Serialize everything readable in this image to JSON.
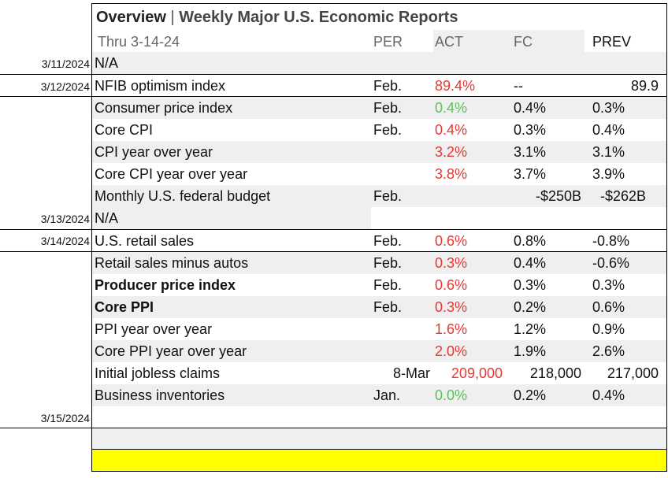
{
  "title": {
    "bold": "Overview",
    "sep": " | ",
    "rest": "Weekly Major U.S. Economic Reports"
  },
  "subtitle": "Thru 3-14-24",
  "columns": {
    "per": "PER",
    "act": "ACT",
    "fc": "FC",
    "prev": "PREV"
  },
  "dates": [
    "3/11/2024",
    "3/12/2024",
    "3/13/2024",
    "3/14/2024",
    "3/15/2024"
  ],
  "rows": [
    {
      "name": "N/A",
      "per": "",
      "act": "",
      "fc": "",
      "prev": ""
    },
    {
      "name": "NFIB optimism index",
      "per": "Feb.",
      "act": "89.4%",
      "fc": "--",
      "prev": "89.9"
    },
    {
      "name": "Consumer price index",
      "per": "Feb.",
      "act": "0.4%",
      "fc": "0.4%",
      "prev": "0.3%"
    },
    {
      "name": "Core CPI",
      "per": "Feb.",
      "act": "0.4%",
      "fc": "0.3%",
      "prev": "0.4%"
    },
    {
      "name": "CPI year over year",
      "per": "",
      "act": "3.2%",
      "fc": "3.1%",
      "prev": "3.1%"
    },
    {
      "name": "Core CPI year over year",
      "per": "",
      "act": "3.8%",
      "fc": "3.7%",
      "prev": "3.9%"
    },
    {
      "name": "Monthly U.S. federal budget",
      "per": "Feb.",
      "act": "",
      "fc": "-$250B",
      "prev": "-$262B"
    },
    {
      "name": "N/A",
      "per": "",
      "act": "",
      "fc": "",
      "prev": ""
    },
    {
      "name": "U.S. retail sales",
      "per": "Feb.",
      "act": "0.6%",
      "fc": "0.8%",
      "prev": "-0.8%"
    },
    {
      "name": "Retail sales minus autos",
      "per": "Feb.",
      "act": "0.3%",
      "fc": "0.4%",
      "prev": "-0.6%"
    },
    {
      "name": "Producer price index",
      "per": "Feb.",
      "act": "0.6%",
      "fc": "0.3%",
      "prev": "0.3%"
    },
    {
      "name": "Core PPI",
      "per": "Feb.",
      "act": "0.3%",
      "fc": "0.2%",
      "prev": "0.6%"
    },
    {
      "name": "PPI year over year",
      "per": "",
      "act": "1.6%",
      "fc": "1.2%",
      "prev": "0.9%"
    },
    {
      "name": "Core PPI year over year",
      "per": "",
      "act": "2.0%",
      "fc": "1.9%",
      "prev": "2.6%"
    },
    {
      "name": "Initial jobless claims",
      "per": "8-Mar",
      "act": "209,000",
      "fc": "218,000",
      "prev": "217,000"
    },
    {
      "name": "Business inventories",
      "per": "Jan.",
      "act": "0.0%",
      "fc": "0.2%",
      "prev": "0.4%"
    }
  ],
  "colors": {
    "red": "#e53935",
    "green": "#5cc05c",
    "highlight": "#ffff00",
    "shade": "#efefef"
  }
}
